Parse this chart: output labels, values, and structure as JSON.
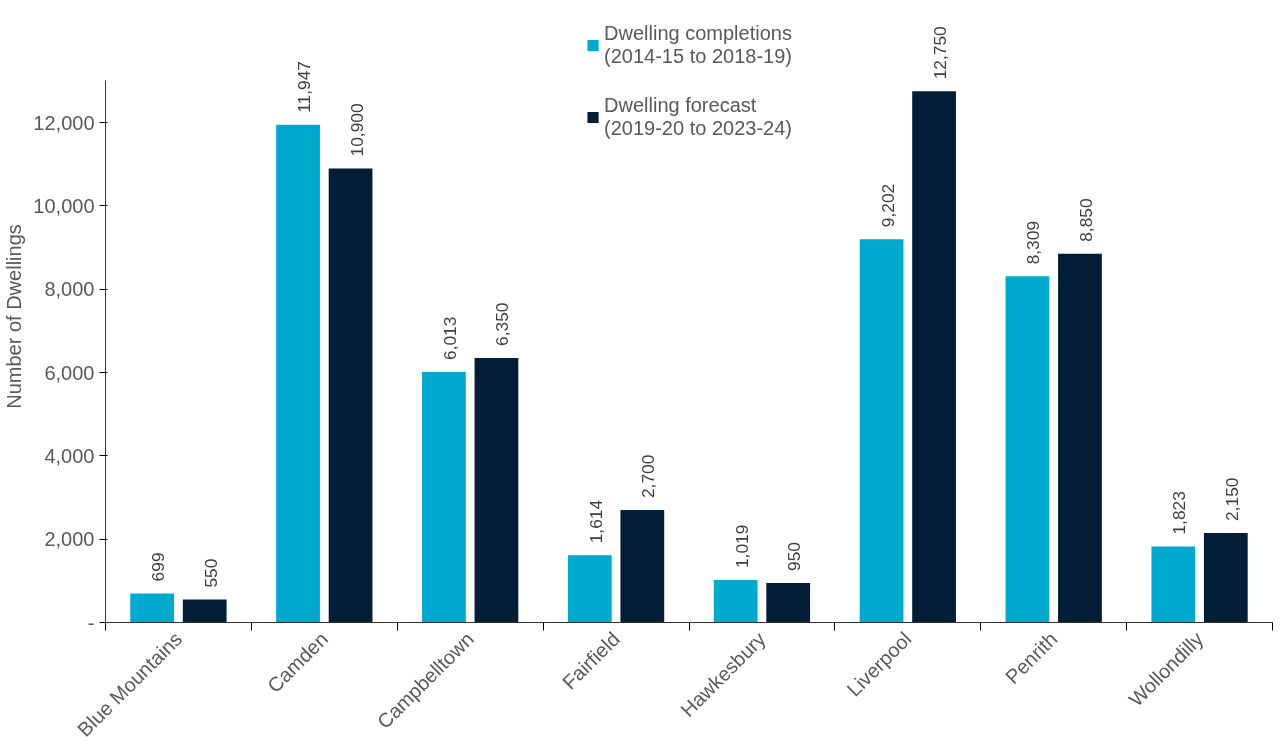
{
  "chart_data": {
    "type": "bar",
    "ylabel": "Number of Dwellings",
    "categories": [
      "Blue Mountains",
      "Camden",
      "Campbelltown",
      "Fairfield",
      "Hawkesbury",
      "Liverpool",
      "Penrith",
      "Wollondilly"
    ],
    "series": [
      {
        "name": "Dwelling completions\n(2014-15 to 2018-19)",
        "color": "#00a9ce",
        "values": [
          699,
          11947,
          6013,
          1614,
          1019,
          9202,
          8309,
          1823
        ],
        "value_labels": [
          "699",
          "11,947",
          "6,013",
          "1,614",
          "1,019",
          "9,202",
          "8,309",
          "1,823"
        ]
      },
      {
        "name": "Dwelling forecast\n(2019-20 to 2023-24)",
        "color": "#021d36",
        "values": [
          550,
          10900,
          6350,
          2700,
          950,
          12750,
          8850,
          2150
        ],
        "value_labels": [
          "550",
          "10,900",
          "6,350",
          "2,700",
          "950",
          "12,750",
          "8,850",
          "2,150"
        ]
      }
    ],
    "ylim": [
      0,
      13000
    ],
    "yticks": [
      {
        "value": 0,
        "label": "-"
      },
      {
        "value": 2000,
        "label": "2,000"
      },
      {
        "value": 4000,
        "label": "4,000"
      },
      {
        "value": 6000,
        "label": "6,000"
      },
      {
        "value": 8000,
        "label": "8,000"
      },
      {
        "value": 10000,
        "label": "10,000"
      },
      {
        "value": 12000,
        "label": "12,000"
      }
    ],
    "grid": false,
    "legend": "top"
  }
}
